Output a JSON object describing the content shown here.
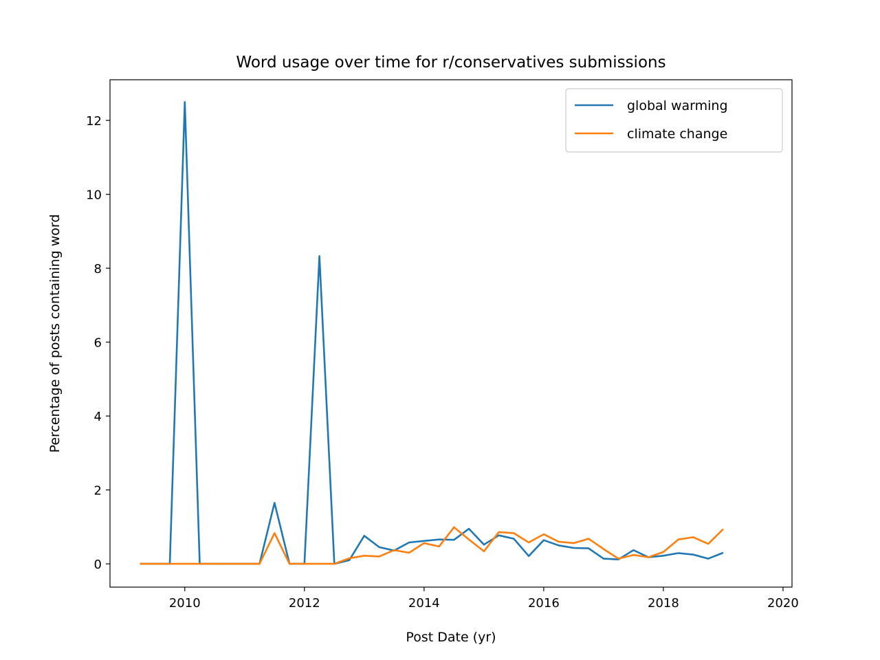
{
  "chart_data": {
    "type": "line",
    "title": "Word usage over time for r/conservatives submissions",
    "xlabel": "Post Date (yr)",
    "ylabel": "Percentage of posts containing word",
    "xlim": [
      2008.75,
      2020.15
    ],
    "ylim": [
      -0.63,
      13.1
    ],
    "xticks": [
      2010,
      2012,
      2014,
      2016,
      2018,
      2020
    ],
    "xtick_labels": [
      "2010",
      "2012",
      "2014",
      "2016",
      "2018",
      "2020"
    ],
    "yticks": [
      0,
      2,
      4,
      6,
      8,
      10,
      12
    ],
    "ytick_labels": [
      "0",
      "2",
      "4",
      "6",
      "8",
      "10",
      "12"
    ],
    "grid": false,
    "legend_position": "top-right",
    "x": [
      2009.25,
      2009.5,
      2009.75,
      2010.0,
      2010.25,
      2010.5,
      2010.75,
      2011.0,
      2011.25,
      2011.5,
      2011.75,
      2012.0,
      2012.25,
      2012.5,
      2012.75,
      2013.0,
      2013.25,
      2013.5,
      2013.75,
      2014.0,
      2014.25,
      2014.5,
      2014.75,
      2015.0,
      2015.25,
      2015.5,
      2015.75,
      2016.0,
      2016.25,
      2016.5,
      2016.75,
      2017.0,
      2017.25,
      2017.5,
      2017.75,
      2018.0,
      2018.25,
      2018.5,
      2018.75,
      2019.0,
      2019.25,
      2019.5
    ],
    "series": [
      {
        "name": "global warming",
        "color": "#1f77b4",
        "values": [
          0,
          0,
          0,
          12.5,
          0,
          0,
          0,
          0,
          0,
          1.65,
          0,
          0,
          8.33,
          0,
          0.1,
          0.76,
          0.45,
          0.36,
          0.58,
          0.62,
          0.66,
          0.65,
          0.95,
          0.52,
          0.77,
          0.68,
          0.21,
          0.64,
          0.5,
          0.43,
          0.42,
          0.14,
          0.12,
          0.37,
          0.18,
          0.22,
          0.29,
          0.25,
          0.14,
          0.3,
          null,
          null
        ]
      },
      {
        "name": "climate change",
        "color": "#ff7f0e",
        "values": [
          0,
          0,
          0,
          0,
          0,
          0,
          0,
          0,
          0,
          0.83,
          0,
          0,
          0,
          0,
          0.15,
          0.22,
          0.2,
          0.37,
          0.3,
          0.56,
          0.47,
          0.99,
          0.66,
          0.34,
          0.86,
          0.83,
          0.58,
          0.8,
          0.6,
          0.56,
          0.68,
          0.4,
          0.14,
          0.24,
          0.18,
          0.32,
          0.66,
          0.72,
          0.54,
          0.94,
          null,
          null
        ]
      }
    ]
  }
}
